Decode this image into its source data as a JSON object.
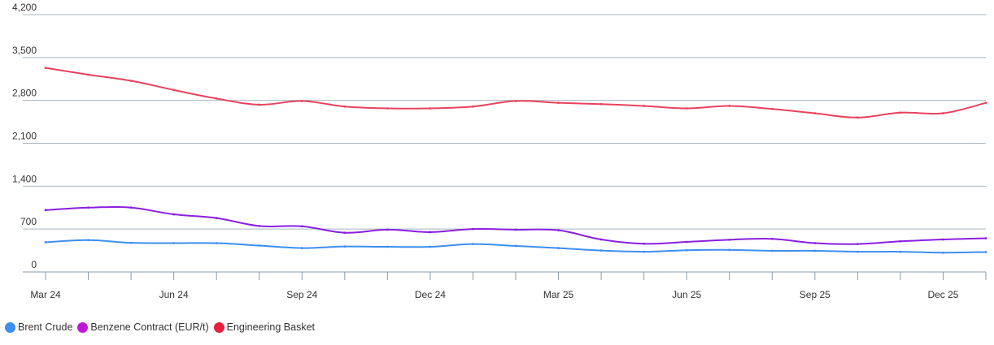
{
  "chart_data": {
    "type": "line",
    "title": "",
    "xlabel": "",
    "ylabel": "",
    "ylim": [
      0,
      4200
    ],
    "yticks": [
      0,
      700,
      1400,
      2100,
      2800,
      3500,
      4200
    ],
    "ytick_labels": [
      "0",
      "700",
      "1,400",
      "2,100",
      "2,800",
      "3,500",
      "4,200"
    ],
    "x": [
      "Mar 24",
      "Apr 24",
      "May 24",
      "Jun 24",
      "Jul 24",
      "Aug 24",
      "Sep 24",
      "Oct 24",
      "Nov 24",
      "Dec 24",
      "Jan 25",
      "Feb 25",
      "Mar 25",
      "Apr 25",
      "May 25",
      "Jun 25",
      "Jul 25",
      "Aug 25",
      "Sep 25",
      "Oct 25",
      "Nov 25",
      "Dec 25",
      "Jan 26"
    ],
    "xtick_labels": [
      "Mar 24",
      "",
      "",
      "Jun 24",
      "",
      "",
      "Sep 24",
      "",
      "",
      "Dec 24",
      "",
      "",
      "Mar 25",
      "",
      "",
      "Jun 25",
      "",
      "",
      "Sep 25",
      "",
      "",
      "Dec 25",
      ""
    ],
    "grid": true,
    "legend_position": "bottom-left",
    "series": [
      {
        "name": "Brent Crude",
        "color": "#3d8ff0",
        "values": [
          485,
          520,
          475,
          470,
          470,
          430,
          390,
          415,
          410,
          410,
          455,
          425,
          390,
          350,
          330,
          355,
          360,
          345,
          345,
          330,
          330,
          315,
          325
        ]
      },
      {
        "name": "Benzene Contract (EUR/t)",
        "color": "#8a1fe0",
        "values": [
          1010,
          1050,
          1050,
          940,
          880,
          750,
          745,
          640,
          690,
          650,
          700,
          690,
          680,
          530,
          460,
          490,
          525,
          540,
          470,
          455,
          500,
          530,
          550
        ]
      },
      {
        "name": "Engineering Basket",
        "color": "#e8425e",
        "values": [
          3330,
          3220,
          3120,
          2970,
          2830,
          2730,
          2790,
          2700,
          2670,
          2670,
          2700,
          2790,
          2760,
          2740,
          2710,
          2670,
          2710,
          2660,
          2590,
          2520,
          2600,
          2590,
          2760
        ]
      }
    ]
  },
  "legend": {
    "items": [
      {
        "label": "Brent Crude",
        "color": "#3d8ff0"
      },
      {
        "label": "Benzene Contract (EUR/t)",
        "color": "#c018d8"
      },
      {
        "label": "Engineering Basket",
        "color": "#e8203e"
      }
    ]
  }
}
